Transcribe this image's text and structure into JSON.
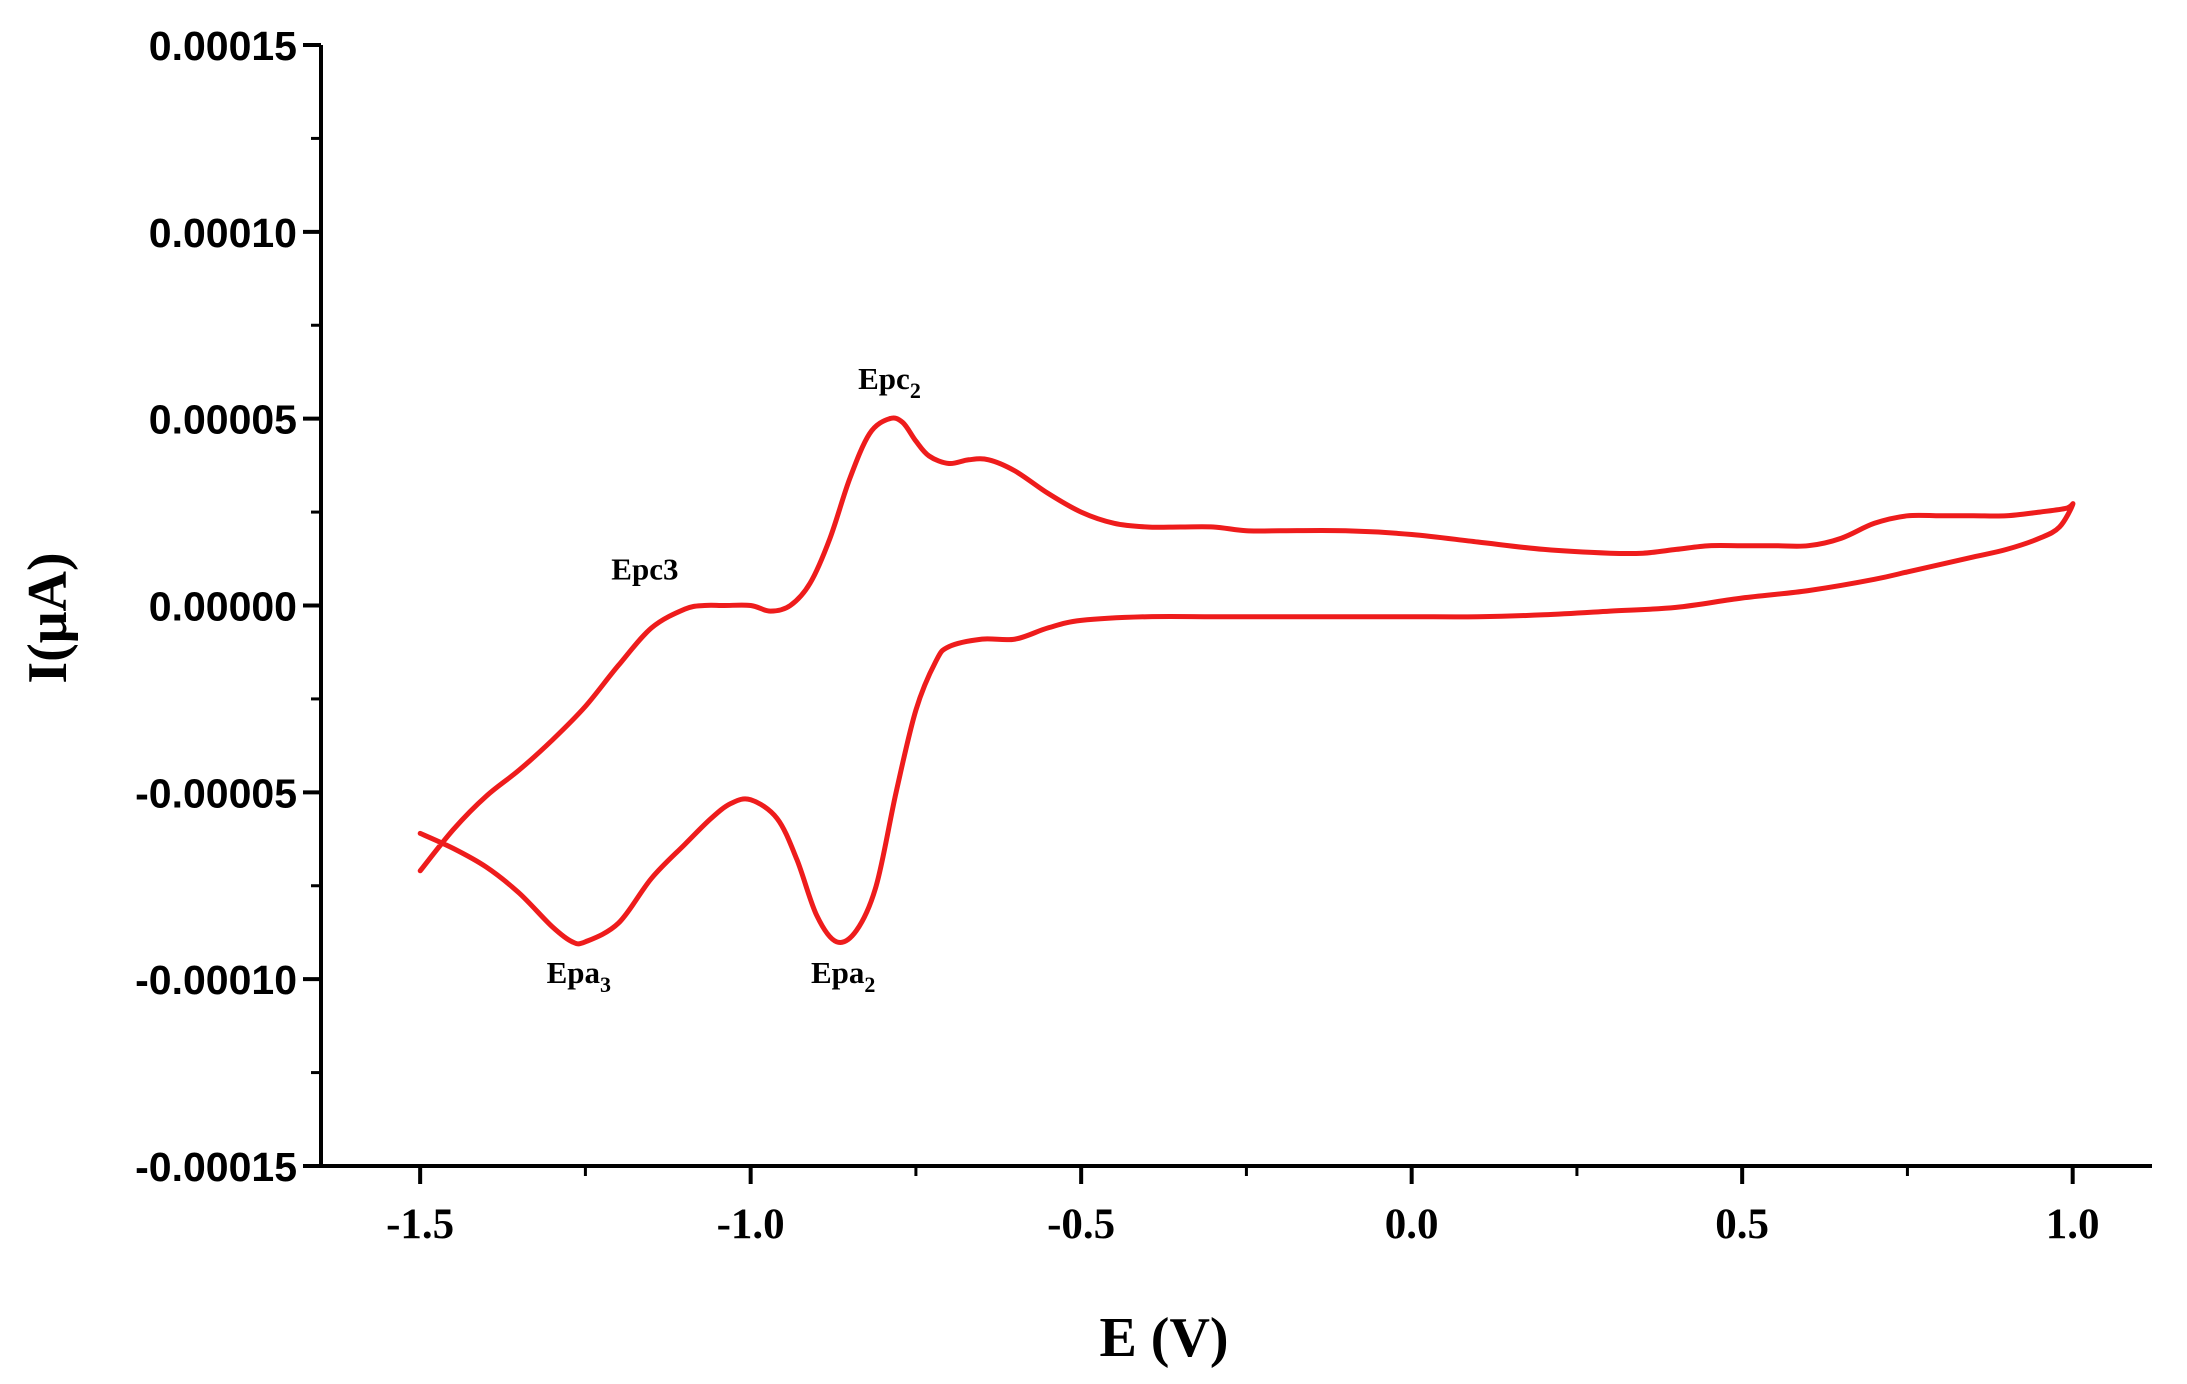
{
  "chart_data": {
    "type": "line",
    "xlabel": "E (V)",
    "ylabel": "I(μA)",
    "xlim": [
      -1.65,
      1.12
    ],
    "ylim": [
      -0.00015,
      0.00015
    ],
    "xticks": [
      -1.5,
      -1.0,
      -0.5,
      0.0,
      0.5,
      1.0
    ],
    "xtick_labels": [
      "-1.5",
      "-1.0",
      "-0.5",
      "0.0",
      "0.5",
      "1.0"
    ],
    "yticks": [
      0.00015,
      0.0001,
      5e-05,
      0.0,
      -5e-05,
      -0.0001,
      -0.00015
    ],
    "ytick_labels": [
      "0.00015",
      "0.00010",
      "0.00005",
      "0.00000",
      "-0.00005",
      "-0.00010",
      "-0.00015"
    ],
    "grid": false,
    "line_color": "#ee1c1c",
    "series": [
      {
        "x": [
          -1.5,
          -1.45,
          -1.4,
          -1.35,
          -1.3,
          -1.25,
          -1.2,
          -1.15,
          -1.1,
          -1.07,
          -1.04,
          -1.0,
          -0.97,
          -0.94,
          -0.91,
          -0.88,
          -0.85,
          -0.82,
          -0.79,
          -0.77,
          -0.75,
          -0.73,
          -0.7,
          -0.67,
          -0.64,
          -0.6,
          -0.55,
          -0.5,
          -0.45,
          -0.4,
          -0.35,
          -0.3,
          -0.25,
          -0.2,
          -0.1,
          0.0,
          0.1,
          0.2,
          0.3,
          0.35,
          0.4,
          0.45,
          0.5,
          0.55,
          0.6,
          0.65,
          0.7,
          0.75,
          0.8,
          0.85,
          0.9,
          0.95,
          0.99,
          1.0,
          0.98,
          0.95,
          0.9,
          0.85,
          0.8,
          0.75,
          0.7,
          0.6,
          0.5,
          0.4,
          0.3,
          0.2,
          0.1,
          0.0,
          -0.1,
          -0.2,
          -0.3,
          -0.4,
          -0.5,
          -0.55,
          -0.6,
          -0.65,
          -0.7,
          -0.72,
          -0.75,
          -0.78,
          -0.81,
          -0.84,
          -0.87,
          -0.9,
          -0.93,
          -0.96,
          -1.0,
          -1.03,
          -1.06,
          -1.1,
          -1.15,
          -1.2,
          -1.25,
          -1.27,
          -1.3,
          -1.35,
          -1.4,
          -1.45,
          -1.5
        ],
        "y": [
          -7.1e-05,
          -6e-05,
          -5.1e-05,
          -4.4e-05,
          -3.6e-05,
          -2.7e-05,
          -1.6e-05,
          -6e-06,
          -1e-06,
          0.0,
          0.0,
          0.0,
          -1.5e-06,
          0.0,
          6e-06,
          1.8e-05,
          3.4e-05,
          4.6e-05,
          5e-05,
          4.9e-05,
          4.4e-05,
          4e-05,
          3.8e-05,
          3.9e-05,
          3.9e-05,
          3.6e-05,
          3e-05,
          2.5e-05,
          2.2e-05,
          2.1e-05,
          2.1e-05,
          2.1e-05,
          2e-05,
          2e-05,
          2e-05,
          1.9e-05,
          1.7e-05,
          1.5e-05,
          1.4e-05,
          1.4e-05,
          1.5e-05,
          1.6e-05,
          1.6e-05,
          1.6e-05,
          1.6e-05,
          1.8e-05,
          2.2e-05,
          2.4e-05,
          2.4e-05,
          2.4e-05,
          2.4e-05,
          2.5e-05,
          2.6e-05,
          2.7e-05,
          2.1e-05,
          1.8e-05,
          1.5e-05,
          1.3e-05,
          1.1e-05,
          9e-06,
          7e-06,
          4e-06,
          2e-06,
          -5e-07,
          -1.5e-06,
          -2.5e-06,
          -3e-06,
          -3e-06,
          -3e-06,
          -3e-06,
          -3e-06,
          -3e-06,
          -4e-06,
          -6e-06,
          -9e-06,
          -9e-06,
          -1.1e-05,
          -1.5e-05,
          -2.8e-05,
          -5e-05,
          -7.5e-05,
          -8.7e-05,
          -9e-05,
          -8.3e-05,
          -6.8e-05,
          -5.7e-05,
          -5.2e-05,
          -5.3e-05,
          -5.7e-05,
          -6.4e-05,
          -7.3e-05,
          -8.5e-05,
          -9e-05,
          -9e-05,
          -8.6e-05,
          -7.7e-05,
          -7e-05,
          -6.5e-05,
          -6.1e-05
        ]
      }
    ],
    "annotations": [
      {
        "base": "Epc",
        "sub": "2",
        "x": -0.79,
        "y": 5.8e-05,
        "sub_style": "subscript"
      },
      {
        "base": "Epc",
        "sub": "3",
        "x": -1.16,
        "y": 7e-06,
        "sub_style": "inline"
      },
      {
        "base": "Epa",
        "sub": "3",
        "x": -1.26,
        "y": -0.000101,
        "sub_style": "subscript"
      },
      {
        "base": "Epa",
        "sub": "2",
        "x": -0.86,
        "y": -0.000101,
        "sub_style": "subscript"
      }
    ]
  }
}
